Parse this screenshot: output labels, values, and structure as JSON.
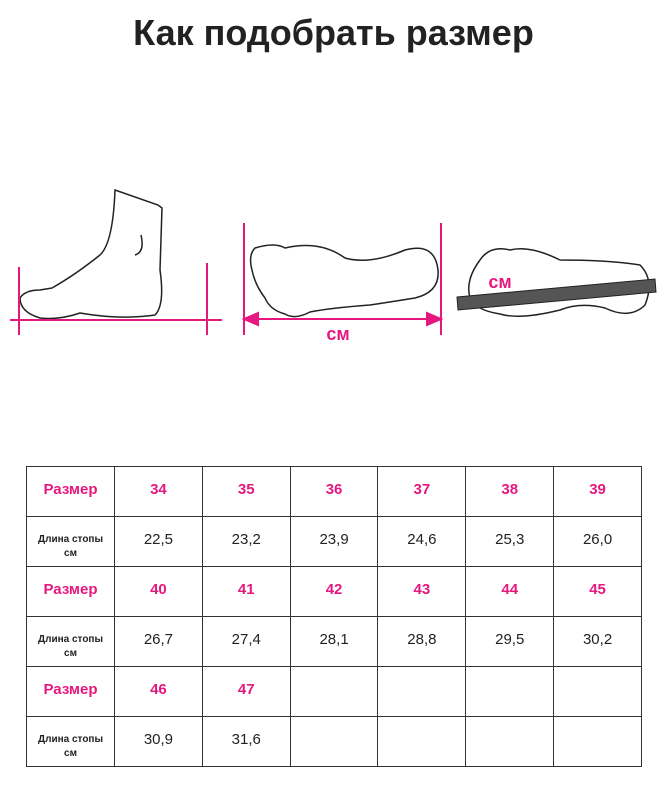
{
  "title": "Как подобрать размер",
  "illustration": {
    "unit_label": "см",
    "accent_color": "#e6187f",
    "ruler_color": "#555555"
  },
  "table": {
    "size_label": "Размер",
    "length_label_line1": "Длина стопы",
    "length_label_line2": "см",
    "groups": [
      {
        "sizes": [
          "34",
          "35",
          "36",
          "37",
          "38",
          "39"
        ],
        "lengths": [
          "22,5",
          "23,2",
          "23,9",
          "24,6",
          "25,3",
          "26,0"
        ]
      },
      {
        "sizes": [
          "40",
          "41",
          "42",
          "43",
          "44",
          "45"
        ],
        "lengths": [
          "26,7",
          "27,4",
          "28,1",
          "28,8",
          "29,5",
          "30,2"
        ]
      },
      {
        "sizes": [
          "46",
          "47",
          "",
          "",
          "",
          ""
        ],
        "lengths": [
          "30,9",
          "31,6",
          "",
          "",
          "",
          ""
        ]
      }
    ]
  }
}
